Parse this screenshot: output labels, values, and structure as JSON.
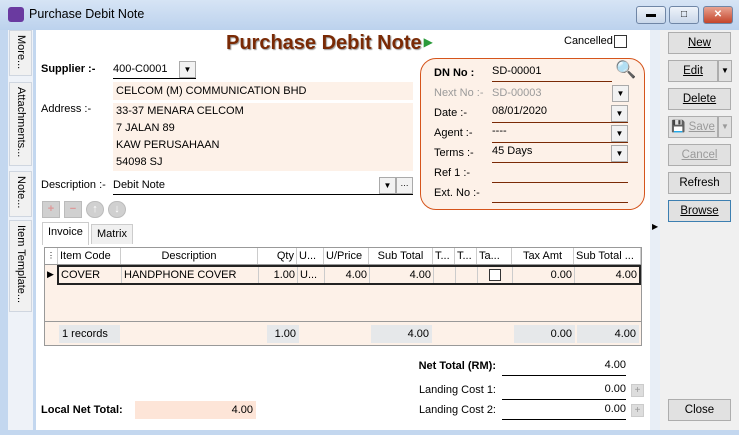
{
  "window": {
    "title": "Purchase Debit Note",
    "controls": [
      "minimize",
      "maximize",
      "close"
    ]
  },
  "side_tabs": [
    "More...",
    "Attachments...",
    "Note...",
    "Item Template..."
  ],
  "header": {
    "title": "Purchase Debit Note",
    "cancelled_label": "Cancelled",
    "cancelled": false
  },
  "supplier": {
    "label": "Supplier :-",
    "code": "400-C0001",
    "name": "CELCOM (M) COMMUNICATION BHD"
  },
  "address": {
    "label": "Address :-",
    "lines": [
      "33-37 MENARA CELCOM",
      "7 JALAN 89",
      "KAW PERUSAHAAN",
      "54098 SJ"
    ]
  },
  "description": {
    "label": "Description :-",
    "value": "Debit Note"
  },
  "doc": {
    "dn_label": "DN No :",
    "dn": "SD-00001",
    "next_label": "Next No :-",
    "next": "SD-00003",
    "date_label": "Date :-",
    "date": "08/01/2020",
    "agent_label": "Agent :-",
    "agent": "----",
    "terms_label": "Terms :-",
    "terms": "45 Days",
    "ref1_label": "Ref 1 :-",
    "ref1": "",
    "ext_label": "Ext. No :-",
    "ext": ""
  },
  "tabs": [
    "Invoice",
    "Matrix"
  ],
  "grid": {
    "columns": [
      "Item Code",
      "Description",
      "Qty",
      "U...",
      "U/Price",
      "Sub Total",
      "T...",
      "T...",
      "Ta...",
      "Tax Amt",
      "Sub Total ..."
    ],
    "rows": [
      {
        "code": "COVER",
        "desc": "HANDPHONE COVER",
        "qty": "1.00",
        "uom": "U...",
        "price": "4.00",
        "subtotal": "4.00",
        "t1": "",
        "t2": "",
        "tax_incl": false,
        "taxamt": "0.00",
        "subtotal_tax": "4.00"
      }
    ],
    "footer": {
      "records": "1 records",
      "qty": "1.00",
      "subtotal": "4.00",
      "taxamt": "0.00",
      "subtotal_tax": "4.00"
    }
  },
  "totals": {
    "net_label": "Net Total (RM):",
    "net": "4.00",
    "lc1_label": "Landing Cost 1:",
    "lc1": "0.00",
    "lc2_label": "Landing Cost 2:",
    "lc2": "0.00",
    "local_label": "Local Net Total:",
    "local": "4.00"
  },
  "buttons": {
    "new": "New",
    "edit": "Edit",
    "delete": "Delete",
    "save": "Save",
    "cancel": "Cancel",
    "refresh": "Refresh",
    "browse": "Browse",
    "close": "Close"
  }
}
